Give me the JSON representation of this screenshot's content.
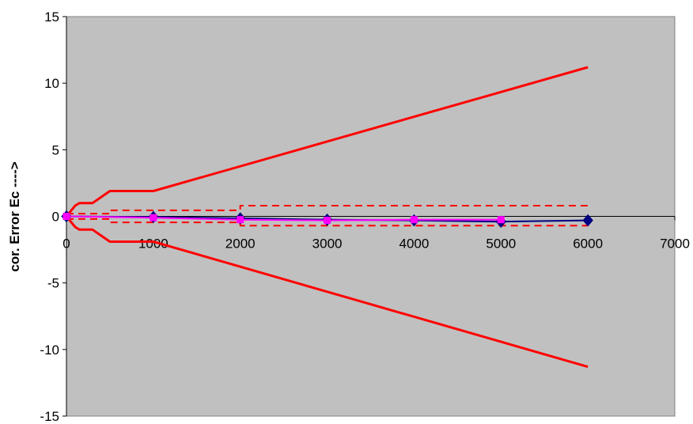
{
  "chart_data": {
    "type": "line",
    "title": "",
    "xlabel": "",
    "ylabel": "cor. Error Ec  ---->",
    "xlim": [
      0,
      7000
    ],
    "ylim": [
      -15,
      15
    ],
    "x_ticks": [
      0,
      1000,
      2000,
      3000,
      4000,
      5000,
      6000,
      7000
    ],
    "y_ticks": [
      -15,
      -10,
      -5,
      0,
      5,
      10,
      15
    ],
    "grid": false,
    "legend": "none",
    "plot_background": "#c0c0c0",
    "series": [
      {
        "role": "upper tolerance limit",
        "color": "#ff0000",
        "style": "solid",
        "x": [
          0,
          100,
          150,
          200,
          300,
          500,
          1000,
          6000
        ],
        "y": [
          0,
          0.8,
          1.0,
          1.0,
          1.0,
          1.9,
          1.9,
          11.2
        ]
      },
      {
        "role": "lower tolerance limit",
        "color": "#ff0000",
        "style": "solid",
        "x": [
          0,
          100,
          150,
          200,
          300,
          500,
          1000,
          6000
        ],
        "y": [
          0,
          -0.8,
          -1.0,
          -1.0,
          -1.0,
          -1.9,
          -1.9,
          -11.3
        ]
      },
      {
        "role": "upper inner limit",
        "color": "#ff0000",
        "style": "dashed",
        "x": [
          0,
          500,
          500,
          2000,
          2000,
          6000
        ],
        "y": [
          0.2,
          0.2,
          0.45,
          0.45,
          0.8,
          0.8
        ]
      },
      {
        "role": "lower inner limit",
        "color": "#ff0000",
        "style": "dashed",
        "x": [
          0,
          500,
          500,
          2000,
          2000,
          6000
        ],
        "y": [
          -0.2,
          -0.2,
          -0.45,
          -0.45,
          -0.7,
          -0.7
        ]
      },
      {
        "role": "measured error",
        "color": "#000080",
        "style": "solid",
        "marker": "diamond",
        "x": [
          0,
          1000,
          2000,
          3000,
          4000,
          5000,
          6000
        ],
        "y": [
          0,
          -0.05,
          -0.15,
          -0.25,
          -0.3,
          -0.4,
          -0.3
        ]
      },
      {
        "role": "corrected error",
        "color": "#ff00ff",
        "style": "solid",
        "marker": "square",
        "x": [
          0,
          1000,
          2000,
          3000,
          4000,
          5000
        ],
        "y": [
          0,
          -0.1,
          -0.25,
          -0.3,
          -0.25,
          -0.25
        ]
      }
    ]
  }
}
